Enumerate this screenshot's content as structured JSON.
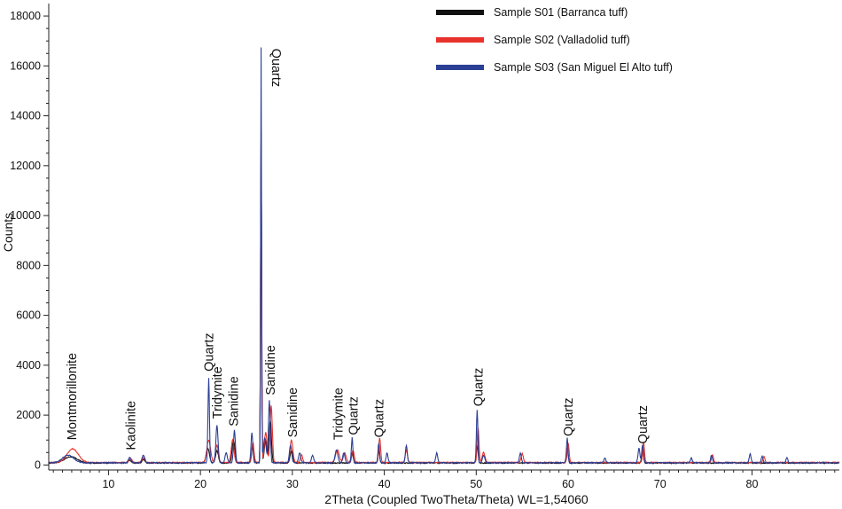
{
  "chart_data": {
    "type": "line",
    "title": "",
    "xlabel": "2Theta (Coupled TwoTheta/Theta) WL=1,54060",
    "ylabel": "Counts",
    "xlim": [
      3.5,
      89.5
    ],
    "ylim": [
      -200,
      18500
    ],
    "x_ticks": [
      10,
      20,
      30,
      40,
      50,
      60,
      70,
      80
    ],
    "y_ticks": [
      0,
      2000,
      4000,
      6000,
      8000,
      10000,
      12000,
      14000,
      16000,
      18000
    ],
    "grid": false,
    "legend_position": "top-right",
    "series": [
      {
        "name": "Sample S01 (Barranca tuff)",
        "color": "#111111",
        "baseline": 80,
        "peaks": [
          [
            5.9,
            250,
            0.7
          ],
          [
            12.3,
            120,
            0.15
          ],
          [
            13.8,
            150,
            0.15
          ],
          [
            20.8,
            600,
            0.18
          ],
          [
            21.8,
            500,
            0.15
          ],
          [
            23.6,
            900,
            0.15
          ],
          [
            25.7,
            700,
            0.12
          ],
          [
            26.6,
            13300,
            0.06
          ],
          [
            27.1,
            900,
            0.15
          ],
          [
            27.6,
            1700,
            0.12
          ],
          [
            29.9,
            500,
            0.15
          ],
          [
            36.5,
            400,
            0.12
          ],
          [
            39.4,
            500,
            0.1
          ],
          [
            50.1,
            700,
            0.1
          ],
          [
            59.9,
            600,
            0.1
          ],
          [
            68.1,
            500,
            0.1
          ]
        ]
      },
      {
        "name": "Sample S02 (Valladolid tuff)",
        "color": "#e8322c",
        "baseline": 100,
        "peaks": [
          [
            6.1,
            550,
            0.6
          ],
          [
            12.4,
            150,
            0.15
          ],
          [
            13.8,
            200,
            0.15
          ],
          [
            20.9,
            900,
            0.2
          ],
          [
            21.8,
            700,
            0.15
          ],
          [
            23.5,
            900,
            0.15
          ],
          [
            25.7,
            800,
            0.12
          ],
          [
            26.6,
            13400,
            0.06
          ],
          [
            27.1,
            1200,
            0.15
          ],
          [
            27.7,
            2300,
            0.12
          ],
          [
            29.9,
            900,
            0.15
          ],
          [
            31.0,
            300,
            0.12
          ],
          [
            34.9,
            500,
            0.2
          ],
          [
            35.7,
            400,
            0.15
          ],
          [
            36.6,
            500,
            0.12
          ],
          [
            39.5,
            1000,
            0.1
          ],
          [
            42.4,
            500,
            0.12
          ],
          [
            50.2,
            1400,
            0.1
          ],
          [
            50.8,
            400,
            0.15
          ],
          [
            55.0,
            350,
            0.12
          ],
          [
            60.0,
            800,
            0.1
          ],
          [
            68.2,
            800,
            0.1
          ],
          [
            75.7,
            300,
            0.1
          ],
          [
            81.3,
            250,
            0.1
          ]
        ]
      },
      {
        "name": "Sample S03 (San Miguel El Alto tuff)",
        "color": "#2b3f95",
        "baseline": 90,
        "peaks": [
          [
            5.6,
            300,
            0.6
          ],
          [
            12.3,
            200,
            0.15
          ],
          [
            13.8,
            300,
            0.15
          ],
          [
            20.9,
            3400,
            0.08
          ],
          [
            21.8,
            1500,
            0.12
          ],
          [
            22.8,
            400,
            0.12
          ],
          [
            23.7,
            1300,
            0.1
          ],
          [
            25.6,
            1200,
            0.1
          ],
          [
            26.6,
            16600,
            0.05
          ],
          [
            27.0,
            1000,
            0.15
          ],
          [
            27.5,
            2500,
            0.1
          ],
          [
            29.8,
            700,
            0.12
          ],
          [
            30.8,
            400,
            0.12
          ],
          [
            32.2,
            300,
            0.12
          ],
          [
            34.8,
            500,
            0.15
          ],
          [
            35.6,
            400,
            0.12
          ],
          [
            36.5,
            1000,
            0.08
          ],
          [
            39.4,
            800,
            0.08
          ],
          [
            40.3,
            400,
            0.1
          ],
          [
            42.4,
            700,
            0.1
          ],
          [
            45.7,
            400,
            0.1
          ],
          [
            50.1,
            2100,
            0.08
          ],
          [
            50.8,
            300,
            0.12
          ],
          [
            54.8,
            400,
            0.1
          ],
          [
            59.9,
            1000,
            0.08
          ],
          [
            64.0,
            200,
            0.1
          ],
          [
            67.7,
            600,
            0.1
          ],
          [
            68.1,
            700,
            0.1
          ],
          [
            73.4,
            200,
            0.1
          ],
          [
            75.6,
            300,
            0.1
          ],
          [
            79.8,
            350,
            0.1
          ],
          [
            81.1,
            250,
            0.1
          ],
          [
            83.8,
            200,
            0.1
          ]
        ]
      }
    ],
    "annotations": [
      {
        "text": "Montmorillonite",
        "x": 6.0,
        "y_top": 1000
      },
      {
        "text": "Kaolinite",
        "x": 12.4,
        "y_top": 600
      },
      {
        "text": "Quartz",
        "x": 20.9,
        "y_top": 3750
      },
      {
        "text": "Tridymite",
        "x": 21.8,
        "y_top": 1850
      },
      {
        "text": "Sanidine",
        "x": 23.6,
        "y_top": 1550
      },
      {
        "text": "Quartz",
        "x": 27.3,
        "y_top": 16700,
        "below": true
      },
      {
        "text": "Sanidine",
        "x": 27.6,
        "y_top": 2800
      },
      {
        "text": "Sanidine",
        "x": 30.0,
        "y_top": 1100
      },
      {
        "text": "Tridymite",
        "x": 35.0,
        "y_top": 1000
      },
      {
        "text": "Quartz",
        "x": 36.6,
        "y_top": 1200
      },
      {
        "text": "Quartz",
        "x": 39.4,
        "y_top": 1100
      },
      {
        "text": "Quartz",
        "x": 50.2,
        "y_top": 2350
      },
      {
        "text": "Quartz",
        "x": 60.0,
        "y_top": 1150
      },
      {
        "text": "Quartz",
        "x": 68.1,
        "y_top": 850
      }
    ]
  }
}
